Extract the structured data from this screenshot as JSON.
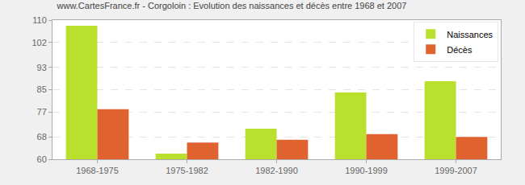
{
  "chart_data": {
    "type": "bar",
    "title": "www.CartesFrance.fr - Corgoloin : Evolution des naissances et décès entre 1968 et 2007",
    "categories": [
      "1968-1975",
      "1975-1982",
      "1982-1990",
      "1990-1999",
      "1999-2007"
    ],
    "series": [
      {
        "name": "Naissances",
        "color": "#b8e02c",
        "values": [
          108,
          62,
          71,
          84,
          88
        ]
      },
      {
        "name": "Décès",
        "color": "#e0622f",
        "values": [
          78,
          66,
          67,
          69,
          68
        ]
      }
    ],
    "ylim": [
      60,
      110
    ],
    "yticks": [
      60,
      68,
      77,
      85,
      93,
      102,
      110
    ],
    "grid": true,
    "legend": "top right"
  }
}
